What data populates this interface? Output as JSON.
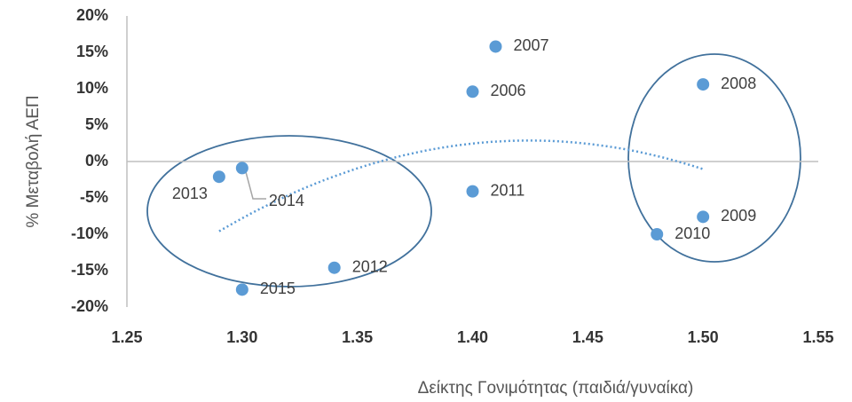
{
  "chart_data": {
    "type": "scatter",
    "x_label": "Δείκτης Γονιμότητας (παιδιά/γυναίκα)",
    "y_label": "% Μεταβολή ΑΕΠ",
    "xlim": [
      1.25,
      1.55
    ],
    "xticks": [
      {
        "value": 1.25,
        "label": "1.25"
      },
      {
        "value": 1.3,
        "label": "1.30"
      },
      {
        "value": 1.35,
        "label": "1.35"
      },
      {
        "value": 1.4,
        "label": "1.40"
      },
      {
        "value": 1.45,
        "label": "1.45"
      },
      {
        "value": 1.5,
        "label": "1.50"
      },
      {
        "value": 1.55,
        "label": "1.55"
      }
    ],
    "ylim": [
      -20,
      20
    ],
    "yticks": [
      {
        "value": 20,
        "label": "20%"
      },
      {
        "value": 15,
        "label": "15%"
      },
      {
        "value": 10,
        "label": "10%"
      },
      {
        "value": 5,
        "label": "5%"
      },
      {
        "value": 0,
        "label": "0%"
      },
      {
        "value": -5,
        "label": "-5%"
      },
      {
        "value": -10,
        "label": "-10%"
      },
      {
        "value": -15,
        "label": "-15%"
      },
      {
        "value": -20,
        "label": "-20%"
      }
    ],
    "series": [
      {
        "color": "#5b9bd5",
        "x": [
          1.41,
          1.4,
          1.5,
          1.4,
          1.29,
          1.3,
          1.3,
          1.34,
          1.5,
          1.48
        ],
        "values": [
          15.8,
          9.6,
          10.6,
          -4.1,
          -2.1,
          -0.9,
          -17.6,
          -14.6,
          -7.6,
          -10.0
        ],
        "labels": [
          "2007",
          "2006",
          "2008",
          "2011",
          "2013",
          "2014",
          "2015",
          "2012",
          "2009",
          "2010"
        ]
      }
    ],
    "trendline": "polynomial"
  }
}
